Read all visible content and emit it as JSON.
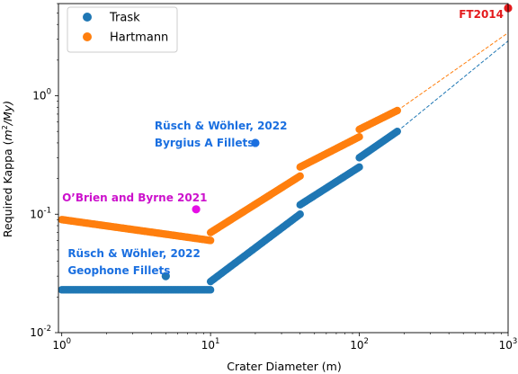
{
  "chart_data": {
    "type": "scatter",
    "xlabel": "Crater Diameter (m)",
    "ylabel_prefix": "Required Kappa (",
    "ylabel_m": "m",
    "ylabel_exp": "2",
    "ylabel_suffix": "/My)",
    "x_scale": "log",
    "y_scale": "log",
    "xlim": [
      0.95,
      1000
    ],
    "ylim": [
      0.01,
      6
    ],
    "x_ticks": [
      1,
      10,
      100,
      1000
    ],
    "x_tick_labels": [
      {
        "base": "10",
        "exp": "0"
      },
      {
        "base": "10",
        "exp": "1"
      },
      {
        "base": "10",
        "exp": "2"
      },
      {
        "base": "10",
        "exp": "3"
      }
    ],
    "y_ticks": [
      0.01,
      0.1,
      1
    ],
    "y_tick_labels": [
      {
        "base": "10",
        "exp": "-2"
      },
      {
        "base": "10",
        "exp": "-1"
      },
      {
        "base": "10",
        "exp": "0"
      }
    ],
    "legend": {
      "placement": "top-left"
    },
    "series": [
      {
        "name": "Trask",
        "color": "#1f77b4",
        "segments": [
          {
            "x_range": [
              1,
              10
            ],
            "y_points": [
              [
                1,
                0.023
              ],
              [
                10,
                0.023
              ]
            ]
          },
          {
            "x_range": [
              10,
              40
            ],
            "y_points": [
              [
                10,
                0.027
              ],
              [
                40,
                0.1
              ]
            ]
          },
          {
            "x_range": [
              40,
              100
            ],
            "y_points": [
              [
                40,
                0.12
              ],
              [
                100,
                0.25
              ]
            ]
          },
          {
            "x_range": [
              100,
              180
            ],
            "y_points": [
              [
                100,
                0.3
              ],
              [
                180,
                0.5
              ]
            ]
          }
        ],
        "extrapolation": [
          [
            180,
            0.5
          ],
          [
            1000,
            2.9
          ]
        ]
      },
      {
        "name": "Hartmann",
        "color": "#ff7f0e",
        "segments": [
          {
            "x_range": [
              1,
              10
            ],
            "y_points": [
              [
                1,
                0.09
              ],
              [
                10,
                0.06
              ]
            ]
          },
          {
            "x_range": [
              10,
              40
            ],
            "y_points": [
              [
                10,
                0.07
              ],
              [
                40,
                0.21
              ]
            ]
          },
          {
            "x_range": [
              40,
              100
            ],
            "y_points": [
              [
                40,
                0.25
              ],
              [
                100,
                0.45
              ]
            ]
          },
          {
            "x_range": [
              100,
              180
            ],
            "y_points": [
              [
                100,
                0.52
              ],
              [
                180,
                0.75
              ]
            ]
          }
        ],
        "extrapolation": [
          [
            180,
            0.75
          ],
          [
            1000,
            3.4
          ]
        ]
      }
    ],
    "annotations": [
      {
        "label": "FT2014",
        "x": 1000,
        "y": 5.5,
        "color": "#e41a1c",
        "text_color": "#e41a1c"
      },
      {
        "label": "O’Brien and Byrne 2021",
        "x": 8,
        "y": 0.11,
        "color": "#e60ee6",
        "text_color": "#cc11cc"
      },
      {
        "label_line1": "Rüsch & Wöhler, 2022",
        "label_line2": "Byrgius A Fillets",
        "x": 20,
        "y": 0.4,
        "color": "#1a6fe0",
        "text_color": "#1a6fe0"
      },
      {
        "label_line1": "Rüsch & Wöhler, 2022",
        "label_line2": "Geophone Fillets",
        "x": 5,
        "y": 0.03,
        "color": "#1f77b4",
        "text_color": "#1a6fe0"
      }
    ]
  }
}
